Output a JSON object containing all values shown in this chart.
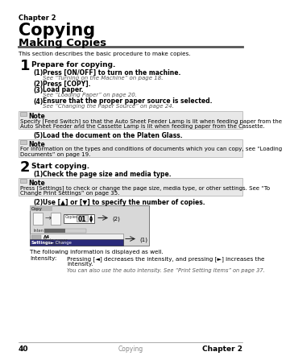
{
  "bg_color": "#ffffff",
  "chapter_label": "Chapter 2",
  "chapter_title": "Copying",
  "section_title": "Making Copies",
  "intro_text": "This section describes the basic procedure to make copies.",
  "step1_num": "1",
  "step1_title": "Prepare for copying.",
  "step1_items": [
    [
      "(1)",
      "Press [ON/OFF] to turn on the machine.",
      "See “Turning on the Machine” on page 18."
    ],
    [
      "(2)",
      "Press [COPY].",
      ""
    ],
    [
      "(3)",
      "Load paper.",
      "See “Loading Paper” on page 20."
    ],
    [
      "(4)",
      "Ensure that the proper paper source is selected.",
      "See “Changing the Paper Source” on page 24."
    ]
  ],
  "note1_line1": "Specify [Feed Switch] so that the Auto Sheet Feeder Lamp is lit when feeding paper from the",
  "note1_line2": "Auto Sheet Feeder and the Cassette Lamp is lit when feeding paper from the Cassette.",
  "step1_item5_num": "(5)",
  "step1_item5_text": "Load the document on the Platen Glass.",
  "note2_line1": "For information on the types and conditions of documents which you can copy, see “Loading",
  "note2_line2": "Documents” on page 19.",
  "step2_num": "2",
  "step2_title": "Start copying.",
  "step2_item1_num": "(1)",
  "step2_item1_text": "Check the page size and media type.",
  "note3_line1": "Press [Settings] to check or change the page size, media type, or other settings. See “To",
  "note3_line2": "Change Print Settings” on page 35.",
  "step2_item2_num": "(2)",
  "step2_item2_text": "Use [▲] or [▼] to specify the number of copies.",
  "following_text": "The following information is displayed as well.",
  "intensity_label": "Intensity:",
  "intensity_text1a": "Pressing [◄] decreases the intensity, and pressing [►] increases the",
  "intensity_text1b": "intensity.",
  "intensity_text2": "You can also use the auto intensity. See “Print Setting Items” on page 37.",
  "footer_page": "40",
  "footer_center": "Copying",
  "footer_right": "Chapter 2"
}
